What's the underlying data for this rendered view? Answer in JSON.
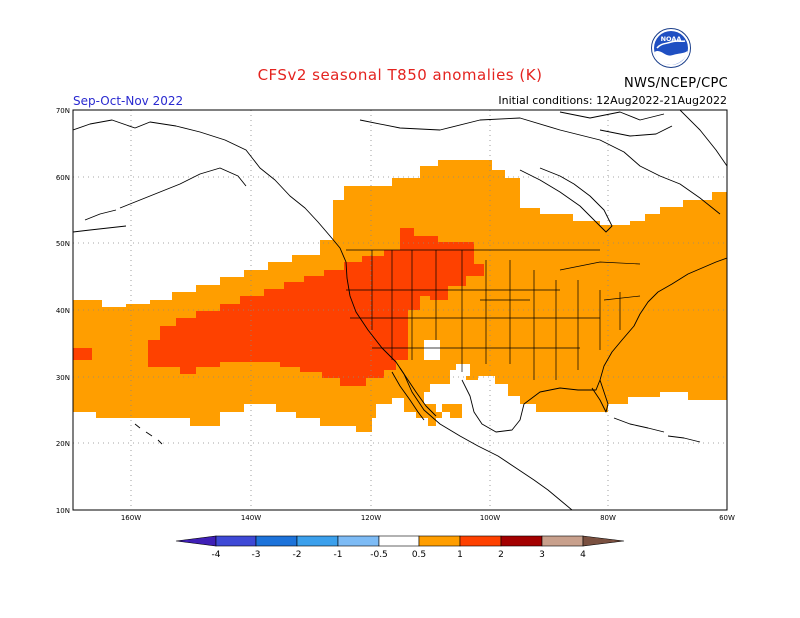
{
  "header": {
    "title": "CFSv2 seasonal T850 anomalies (K)",
    "period": "Sep-Oct-Nov 2022",
    "initial_conditions": "Initial conditions: 12Aug2022-21Aug2022",
    "agency": "NWS/NCEP/CPC",
    "logo_text": "NOAA"
  },
  "map": {
    "lat_labels": [
      "70N",
      "60N",
      "50N",
      "40N",
      "30N",
      "20N",
      "10N"
    ],
    "lon_labels": [
      "160W",
      "140W",
      "120W",
      "100W",
      "80W",
      "60W"
    ],
    "anomaly_regions": [
      {
        "level": "0.5 to 1",
        "color": "#ff9e00"
      },
      {
        "level": "1 to 2",
        "color": "#fe4100"
      }
    ]
  },
  "colorbar": {
    "tick_labels": [
      "-4",
      "-3",
      "-2",
      "-1",
      "-0.5",
      "0.5",
      "1",
      "2",
      "3",
      "4"
    ],
    "colors": [
      "#3f1fb6",
      "#3e49d6",
      "#1d73da",
      "#3ba0ec",
      "#7dbbf5",
      "#ffffff",
      "#ff9e00",
      "#fe4100",
      "#a30000",
      "#c8a08c",
      "#7a5040"
    ]
  }
}
